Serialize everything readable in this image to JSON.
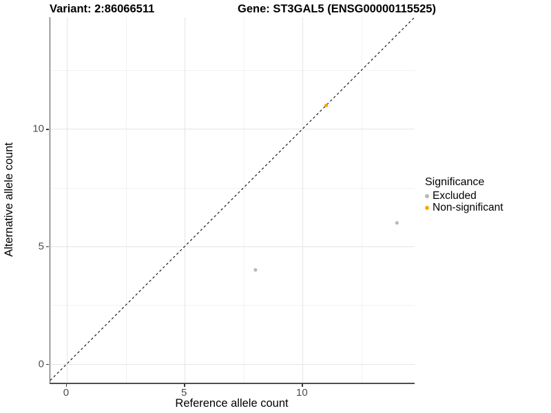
{
  "titles": {
    "variant": "Variant: 2:86066511",
    "gene": "Gene: ST3GAL5 (ENSG00000115525)"
  },
  "legend": {
    "title": "Significance",
    "items": [
      {
        "label": "Excluded",
        "color": "#b9b9b9"
      },
      {
        "label": "Non-significant",
        "color": "#ffa500"
      }
    ]
  },
  "chart_data": {
    "type": "scatter",
    "title": "Variant: 2:86066511   Gene: ST3GAL5 (ENSG00000115525)",
    "xlabel": "Reference allele count",
    "ylabel": "Alternative allele count",
    "xlim": [
      -0.7,
      14.75
    ],
    "ylim": [
      -0.8,
      14.75
    ],
    "x_ticks": [
      0,
      5,
      10
    ],
    "y_ticks": [
      0,
      5,
      10
    ],
    "x_minor_ticks": [
      2.5,
      7.5,
      12.5
    ],
    "y_minor_ticks": [
      2.5,
      7.5,
      12.5
    ],
    "grid": true,
    "legend_position": "right",
    "series": [
      {
        "name": "Excluded",
        "color": "#b9b9b9",
        "points": [
          [
            8,
            4
          ],
          [
            14,
            6
          ]
        ]
      },
      {
        "name": "Non-significant",
        "color": "#ffa500",
        "points": [
          [
            11,
            11
          ]
        ]
      }
    ],
    "reference_line": {
      "kind": "identity y=x",
      "from": [
        -0.7,
        -0.7
      ],
      "to": [
        14.75,
        14.75
      ],
      "style": "dashed",
      "color": "#1a1a1a"
    }
  }
}
